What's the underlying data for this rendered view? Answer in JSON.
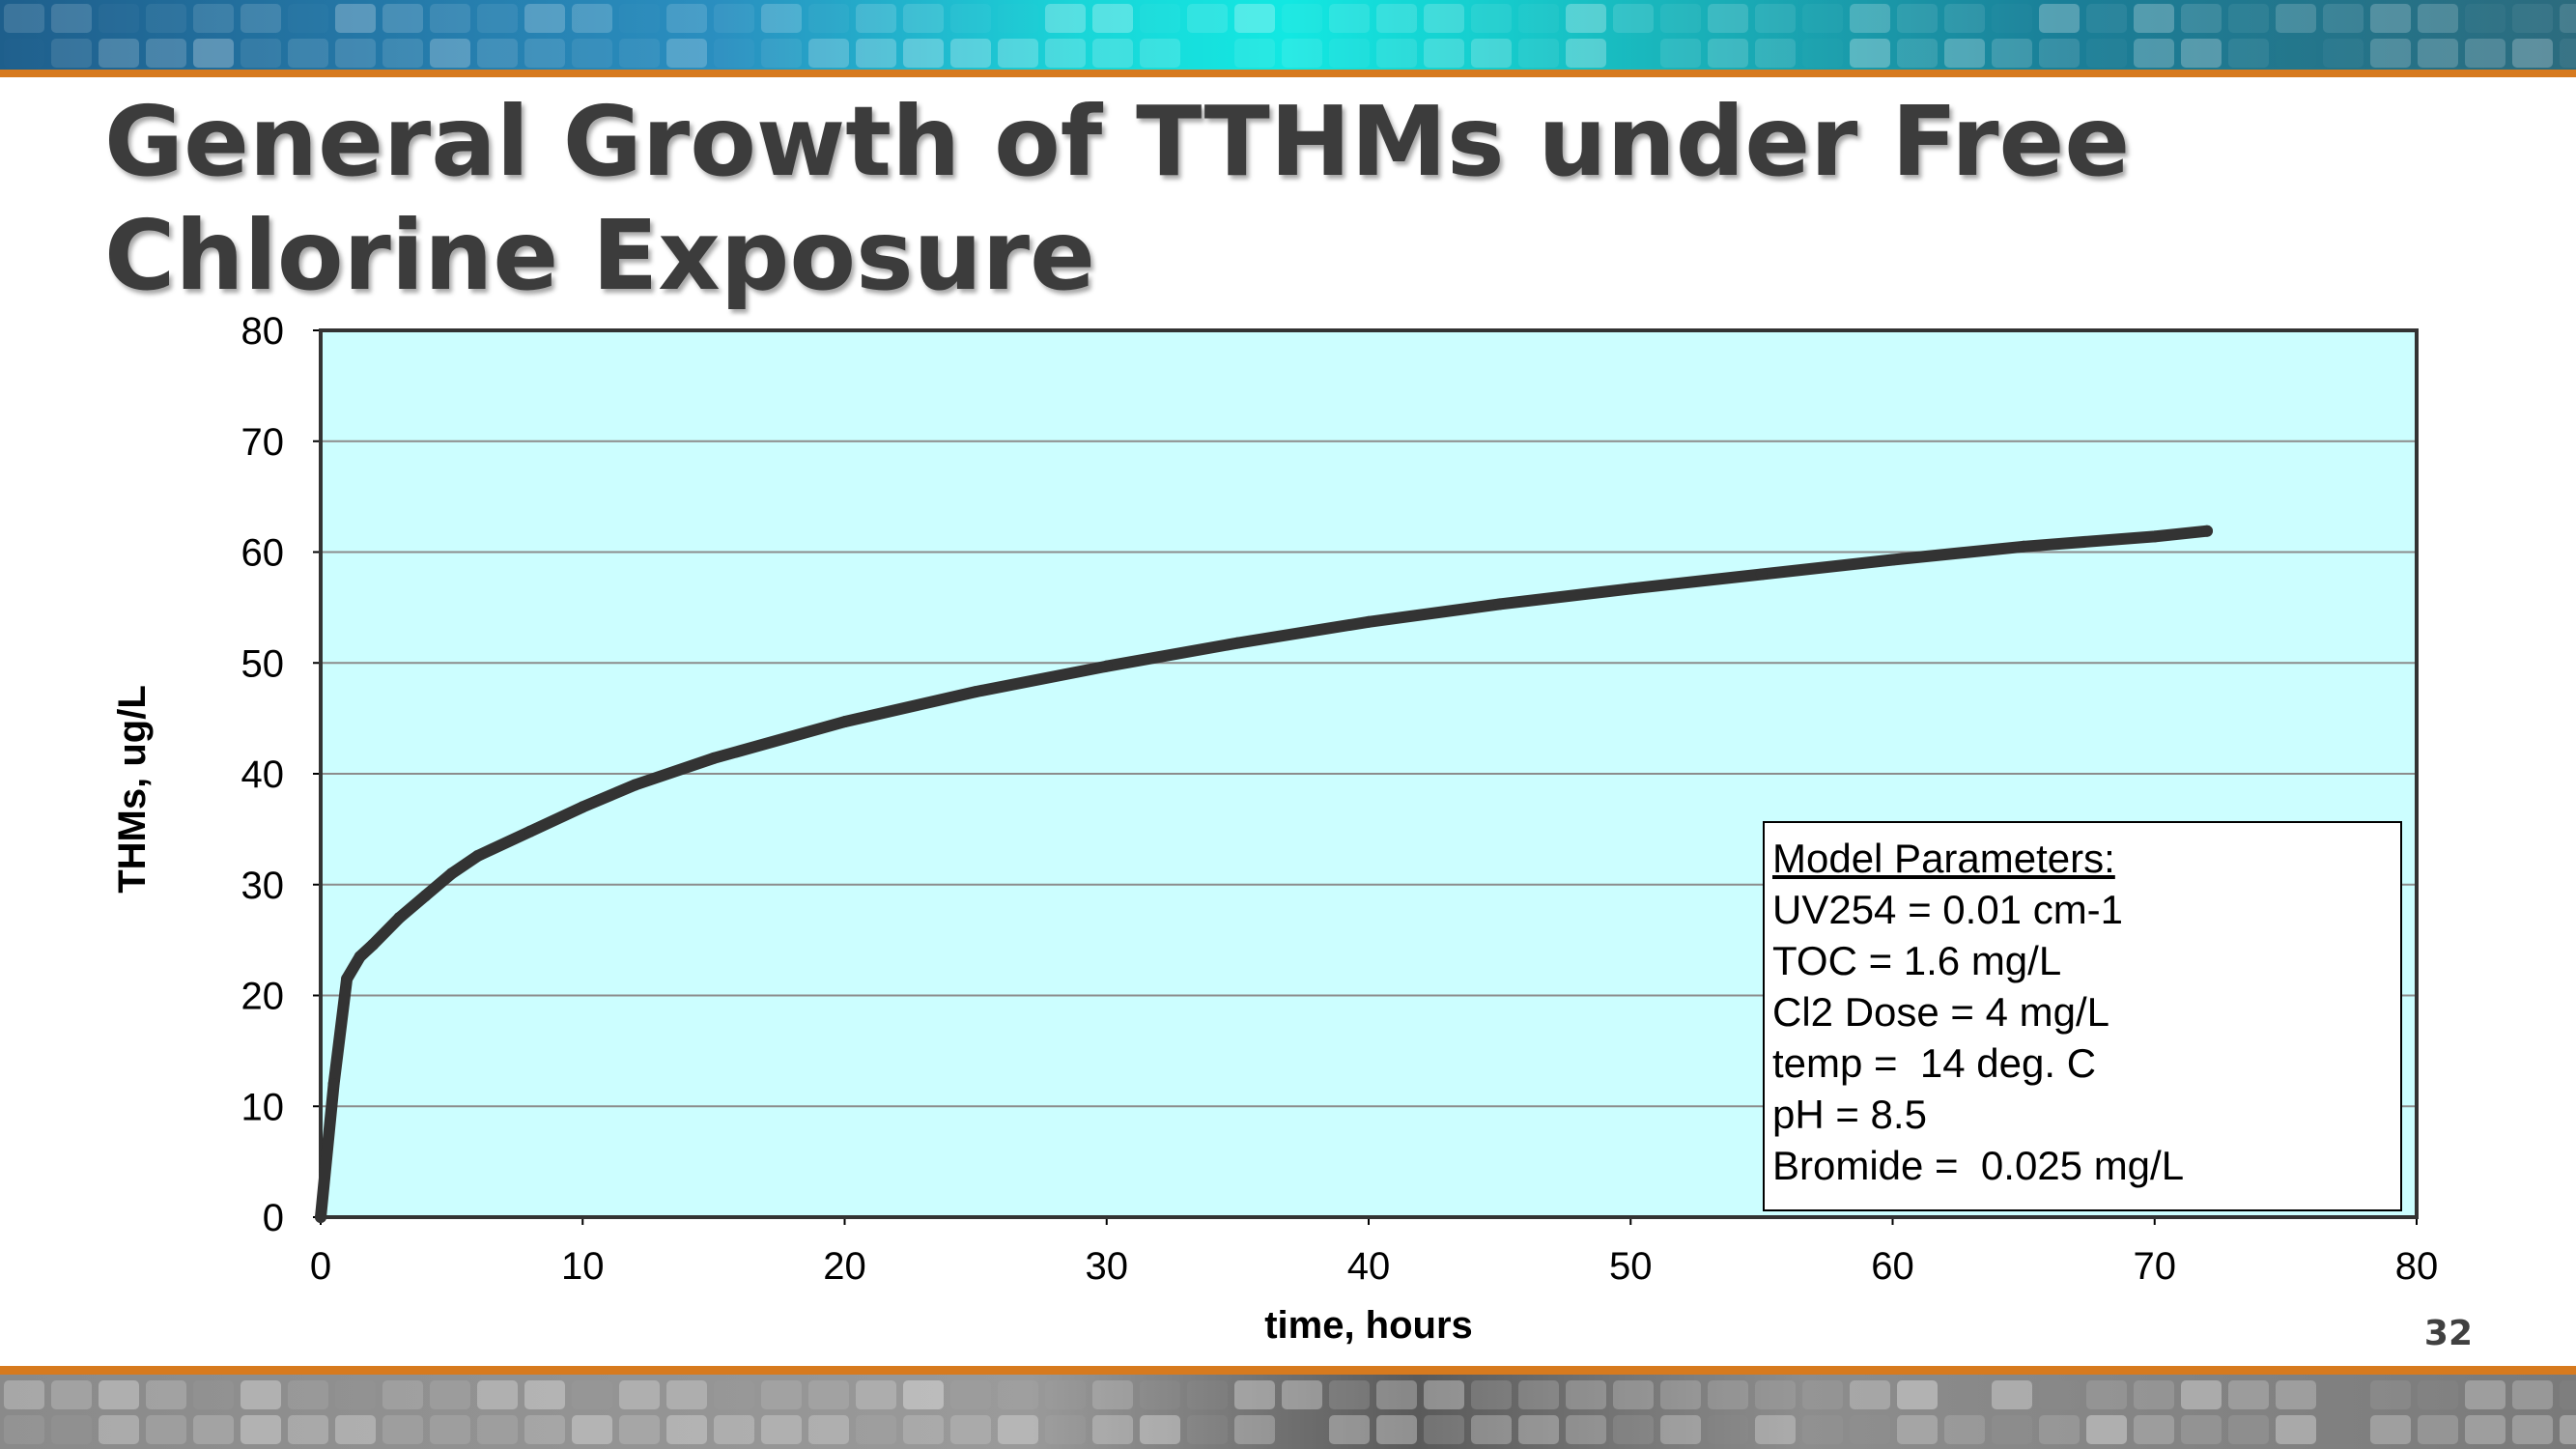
{
  "slide": {
    "title": "General Growth of TTHMs under Free Chlorine Exposure",
    "page_number": "32"
  },
  "colors": {
    "plot_background": "#ccfeff",
    "line": "#333333",
    "accent_stripe": "#d77a1e"
  },
  "chart_data": {
    "type": "line",
    "xlabel": "time, hours",
    "ylabel": "THMs, ug/L",
    "xlim": [
      0,
      80
    ],
    "ylim": [
      0,
      80
    ],
    "xticks": [
      0,
      10,
      20,
      30,
      40,
      50,
      60,
      70,
      80
    ],
    "yticks": [
      0,
      10,
      20,
      30,
      40,
      50,
      60,
      70,
      80
    ],
    "grid": "horizontal",
    "series": [
      {
        "x": [
          0,
          0.5,
          1,
          1.5,
          2,
          3,
          4,
          5,
          6,
          8,
          10,
          12,
          15,
          20,
          25,
          30,
          35,
          40,
          45,
          50,
          55,
          60,
          65,
          70,
          72
        ],
        "y": [
          0,
          12,
          21.5,
          23.5,
          24.6,
          27,
          29,
          31,
          32.6,
          34.8,
          37,
          39,
          41.4,
          44.7,
          47.4,
          49.7,
          51.8,
          53.7,
          55.3,
          56.7,
          58,
          59.3,
          60.5,
          61.4,
          61.9
        ]
      }
    ],
    "annotation": {
      "heading": "Model Parameters:",
      "lines": [
        "UV254 = 0.01 cm-1",
        "TOC = 1.6 mg/L",
        "Cl2 Dose = 4 mg/L",
        "temp =  14 deg. C",
        "pH = 8.5",
        "Bromide =  0.025 mg/L"
      ]
    }
  }
}
